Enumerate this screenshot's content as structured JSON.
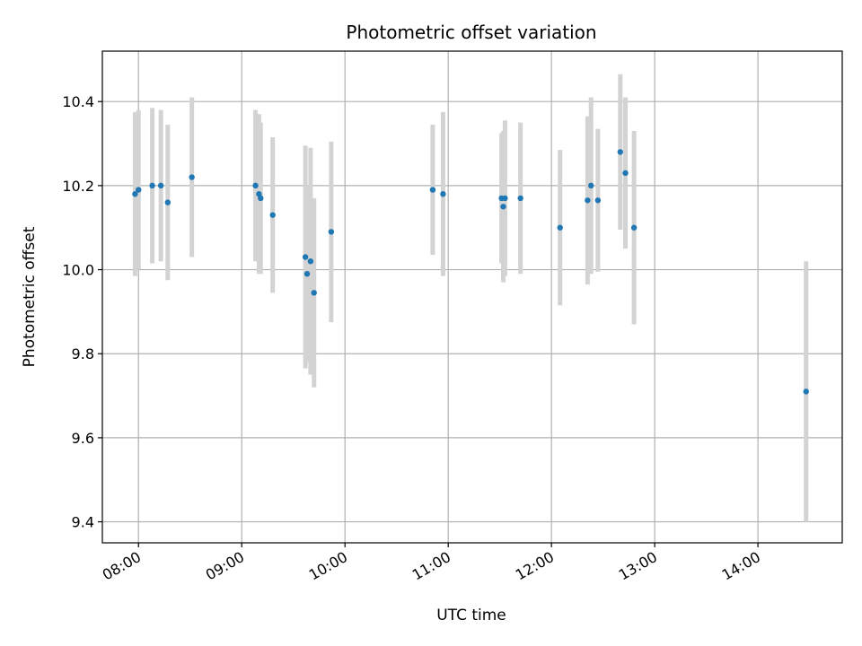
{
  "chart_data": {
    "type": "scatter",
    "title": "Photometric offset variation",
    "xlabel": "UTC time",
    "ylabel": "Photometric offset",
    "xlim": [
      "07:39",
      "14:49"
    ],
    "ylim": [
      9.35,
      10.52
    ],
    "x_ticks": [
      "08:00",
      "09:00",
      "10:00",
      "11:00",
      "12:00",
      "13:00",
      "14:00"
    ],
    "y_ticks": [
      9.4,
      9.6,
      9.8,
      10.0,
      10.2,
      10.4
    ],
    "grid": true,
    "marker_color": "#1f77b4",
    "errorbar_color": "#d3d3d3",
    "points": [
      {
        "time": "07:58",
        "y": 10.18,
        "err": 0.195
      },
      {
        "time": "08:00",
        "y": 10.19,
        "err": 0.19
      },
      {
        "time": "08:08",
        "y": 10.2,
        "err": 0.185
      },
      {
        "time": "08:13",
        "y": 10.2,
        "err": 0.18
      },
      {
        "time": "08:17",
        "y": 10.16,
        "err": 0.185
      },
      {
        "time": "08:31",
        "y": 10.22,
        "err": 0.19
      },
      {
        "time": "09:08",
        "y": 10.2,
        "err": 0.18
      },
      {
        "time": "09:10",
        "y": 10.18,
        "err": 0.19
      },
      {
        "time": "09:11",
        "y": 10.17,
        "err": 0.18
      },
      {
        "time": "09:18",
        "y": 10.13,
        "err": 0.185
      },
      {
        "time": "09:37",
        "y": 10.03,
        "err": 0.265
      },
      {
        "time": "09:38",
        "y": 9.99,
        "err": 0.21
      },
      {
        "time": "09:40",
        "y": 10.02,
        "err": 0.27
      },
      {
        "time": "09:42",
        "y": 9.945,
        "err": 0.225
      },
      {
        "time": "09:52",
        "y": 10.09,
        "err": 0.215
      },
      {
        "time": "10:51",
        "y": 10.19,
        "err": 0.155
      },
      {
        "time": "10:57",
        "y": 10.18,
        "err": 0.195
      },
      {
        "time": "11:31",
        "y": 10.17,
        "err": 0.155
      },
      {
        "time": "11:32",
        "y": 10.15,
        "err": 0.18
      },
      {
        "time": "11:33",
        "y": 10.17,
        "err": 0.185
      },
      {
        "time": "11:42",
        "y": 10.17,
        "err": 0.18
      },
      {
        "time": "12:05",
        "y": 10.1,
        "err": 0.185
      },
      {
        "time": "12:21",
        "y": 10.165,
        "err": 0.2
      },
      {
        "time": "12:23",
        "y": 10.2,
        "err": 0.21
      },
      {
        "time": "12:27",
        "y": 10.165,
        "err": 0.17
      },
      {
        "time": "12:40",
        "y": 10.28,
        "err": 0.185
      },
      {
        "time": "12:43",
        "y": 10.23,
        "err": 0.18
      },
      {
        "time": "12:48",
        "y": 10.1,
        "err": 0.23
      },
      {
        "time": "14:28",
        "y": 9.71,
        "err": 0.31
      }
    ]
  }
}
